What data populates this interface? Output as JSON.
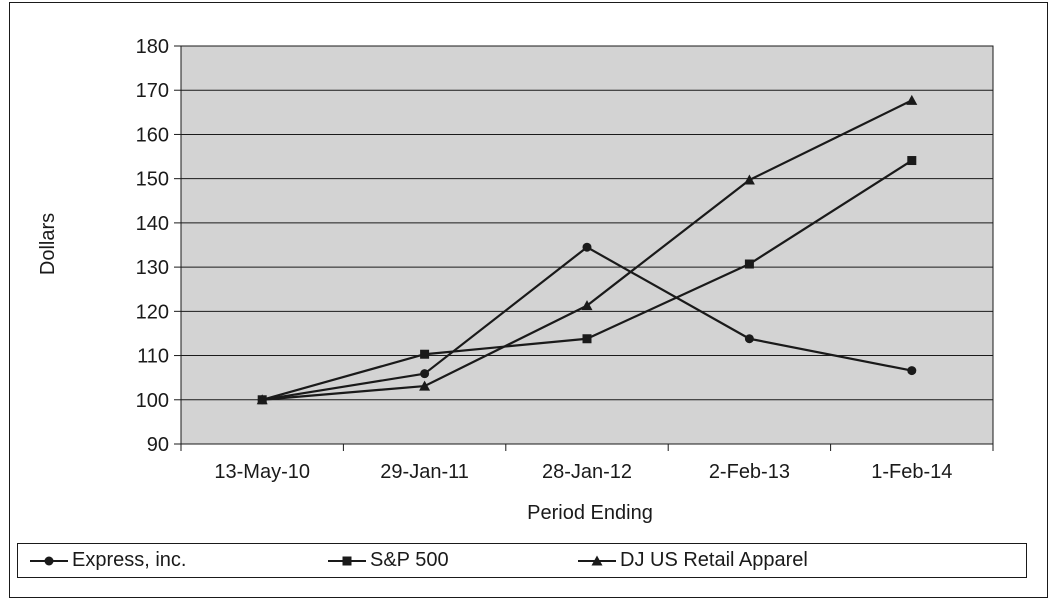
{
  "chart_data": {
    "type": "line",
    "title": "",
    "xlabel": "Period Ending",
    "ylabel": "Dollars",
    "categories": [
      "13-May-10",
      "29-Jan-11",
      "28-Jan-12",
      "2-Feb-13",
      "1-Feb-14"
    ],
    "ylim": [
      90,
      180
    ],
    "yticks": [
      90,
      100,
      110,
      120,
      130,
      140,
      150,
      160,
      170,
      180
    ],
    "grid": true,
    "legend": "bottom",
    "plot_background": "#d3d3d3",
    "line_color": "#1a1a1a",
    "series": [
      {
        "name": "Express, inc.",
        "marker": "circle",
        "values": [
          100,
          105.9,
          134.5,
          113.8,
          106.6
        ]
      },
      {
        "name": "S&P 500",
        "marker": "square",
        "values": [
          100,
          110.3,
          113.8,
          130.7,
          154.1
        ]
      },
      {
        "name": "DJ US Retail Apparel",
        "marker": "triangle",
        "values": [
          100,
          103.1,
          121.3,
          149.7,
          167.7
        ]
      }
    ]
  }
}
